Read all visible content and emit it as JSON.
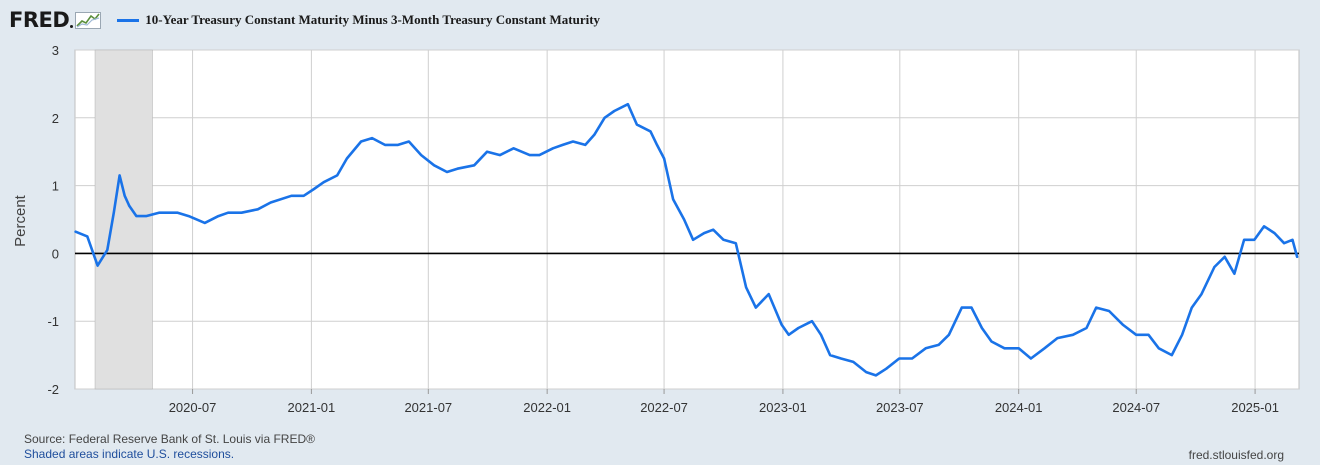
{
  "header": {
    "logo_text": "FRED",
    "series_label": "10-Year Treasury Constant Maturity Minus 3-Month Treasury Constant Maturity"
  },
  "footer": {
    "source": "Source: Federal Reserve Bank of St. Louis via FRED®",
    "recession_note": "Shaded areas indicate U.S. recessions.",
    "site": "fred.stlouisfed.org"
  },
  "colors": {
    "line": "#1a73e8",
    "recession": "#e0e0e0",
    "plot_bg": "#ffffff",
    "page_bg": "#e1e9f0"
  },
  "chart_data": {
    "type": "line",
    "title": "10-Year Treasury Constant Maturity Minus 3-Month Treasury Constant Maturity",
    "ylabel": "Percent",
    "xlabel": "",
    "ylim": [
      -2,
      3
    ],
    "xlim": [
      "2020-01-01",
      "2025-03-10"
    ],
    "yticks": [
      3,
      2,
      1,
      0,
      -1,
      -2
    ],
    "xticks": [
      "2020-07",
      "2021-01",
      "2021-07",
      "2022-01",
      "2022-07",
      "2023-01",
      "2023-07",
      "2024-01",
      "2024-07",
      "2025-01"
    ],
    "grid": true,
    "recession": {
      "start": "2020-02-01",
      "end": "2020-04-30"
    },
    "series": [
      {
        "x": [
          "2020-01-02",
          "2020-01-20",
          "2020-02-05",
          "2020-02-20",
          "2020-03-01",
          "2020-03-10",
          "2020-03-18",
          "2020-03-25",
          "2020-04-05",
          "2020-04-20",
          "2020-05-10",
          "2020-06-08",
          "2020-06-25",
          "2020-07-20",
          "2020-08-10",
          "2020-08-25",
          "2020-09-15",
          "2020-10-10",
          "2020-10-30",
          "2020-12-01",
          "2020-12-20",
          "2021-01-05",
          "2021-01-20",
          "2021-02-10",
          "2021-02-25",
          "2021-03-19",
          "2021-04-05",
          "2021-04-25",
          "2021-05-15",
          "2021-06-01",
          "2021-06-20",
          "2021-07-10",
          "2021-07-30",
          "2021-08-15",
          "2021-09-10",
          "2021-09-30",
          "2021-10-20",
          "2021-11-10",
          "2021-12-05",
          "2021-12-20",
          "2022-01-10",
          "2022-01-25",
          "2022-02-10",
          "2022-03-01",
          "2022-03-15",
          "2022-03-31",
          "2022-04-15",
          "2022-05-06",
          "2022-05-20",
          "2022-06-10",
          "2022-06-20",
          "2022-07-01",
          "2022-07-15",
          "2022-08-01",
          "2022-08-15",
          "2022-09-01",
          "2022-09-15",
          "2022-10-01",
          "2022-10-20",
          "2022-11-05",
          "2022-11-20",
          "2022-12-10",
          "2022-12-30",
          "2023-01-10",
          "2023-01-25",
          "2023-02-15",
          "2023-03-01",
          "2023-03-15",
          "2023-04-01",
          "2023-04-20",
          "2023-05-10",
          "2023-05-25",
          "2023-06-10",
          "2023-06-30",
          "2023-07-20",
          "2023-08-10",
          "2023-08-30",
          "2023-09-15",
          "2023-10-05",
          "2023-10-20",
          "2023-11-05",
          "2023-11-20",
          "2023-12-10",
          "2024-01-01",
          "2024-01-20",
          "2024-02-10",
          "2024-03-01",
          "2024-03-25",
          "2024-04-15",
          "2024-04-30",
          "2024-05-20",
          "2024-06-10",
          "2024-07-01",
          "2024-07-20",
          "2024-08-05",
          "2024-08-25",
          "2024-09-10",
          "2024-09-25",
          "2024-10-10",
          "2024-10-30",
          "2024-11-15",
          "2024-11-30",
          "2024-12-15",
          "2024-12-31",
          "2025-01-15",
          "2025-01-31",
          "2025-02-15",
          "2025-02-28",
          "2025-03-07"
        ],
        "values": [
          0.32,
          0.25,
          -0.18,
          0.05,
          0.6,
          1.15,
          0.85,
          0.7,
          0.55,
          0.55,
          0.6,
          0.6,
          0.55,
          0.45,
          0.55,
          0.6,
          0.6,
          0.65,
          0.75,
          0.85,
          0.85,
          0.95,
          1.05,
          1.15,
          1.4,
          1.65,
          1.7,
          1.6,
          1.6,
          1.65,
          1.45,
          1.3,
          1.2,
          1.25,
          1.3,
          1.5,
          1.45,
          1.55,
          1.45,
          1.45,
          1.55,
          1.6,
          1.65,
          1.6,
          1.75,
          2.0,
          2.1,
          2.2,
          1.9,
          1.8,
          1.6,
          1.4,
          0.8,
          0.5,
          0.2,
          0.3,
          0.35,
          0.2,
          0.15,
          -0.5,
          -0.8,
          -0.6,
          -1.05,
          -1.2,
          -1.1,
          -1.0,
          -1.2,
          -1.5,
          -1.55,
          -1.6,
          -1.75,
          -1.8,
          -1.7,
          -1.55,
          -1.55,
          -1.4,
          -1.35,
          -1.2,
          -0.8,
          -0.8,
          -1.1,
          -1.3,
          -1.4,
          -1.4,
          -1.55,
          -1.4,
          -1.25,
          -1.2,
          -1.1,
          -0.8,
          -0.85,
          -1.05,
          -1.2,
          -1.2,
          -1.4,
          -1.5,
          -1.2,
          -0.8,
          -0.6,
          -0.2,
          -0.05,
          -0.3,
          0.2,
          0.2,
          0.4,
          0.3,
          0.15,
          0.2,
          -0.05
        ]
      }
    ]
  }
}
